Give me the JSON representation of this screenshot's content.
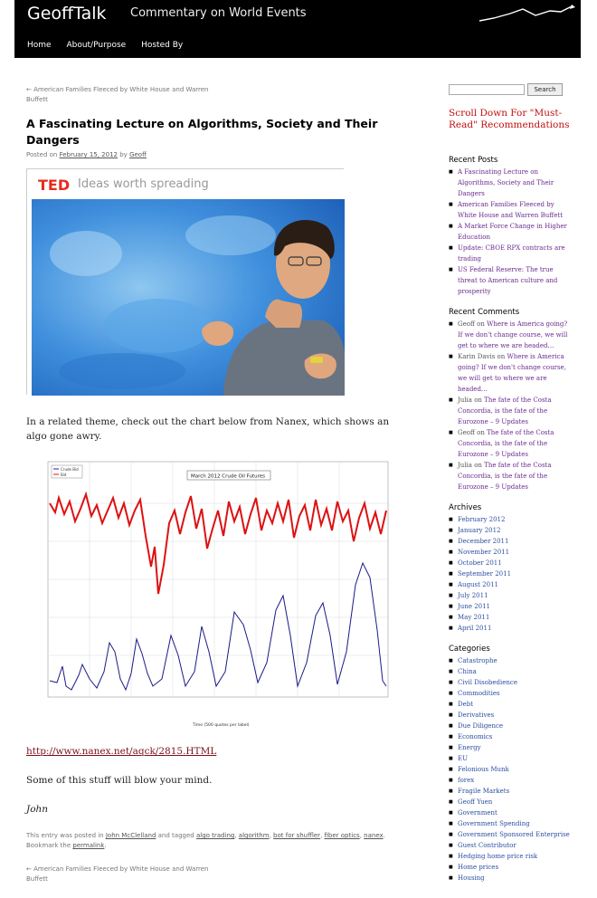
{
  "site": {
    "title": "GeoffTalk",
    "description": "Commentary on World Events"
  },
  "nav": {
    "items": [
      "Home",
      "About/Purpose",
      "Hosted By"
    ]
  },
  "post_nav": {
    "previous": "← American Families Fleeced by White House and Warren Buffett"
  },
  "post": {
    "title": "A Fascinating Lecture on Algorithms, Society and Their Dangers",
    "meta_prefix": "Posted on",
    "date": "February 15, 2012",
    "meta_by": "by",
    "author": "Geoff",
    "ted": {
      "logo": "TED",
      "tagline": "Ideas worth spreading"
    },
    "paragraph1": "In a related theme, check out the chart below from Nanex, which shows an algo gone awry.",
    "chart_title": "March 2012 Crude Oil Futures",
    "chart_legend": [
      "Crude Bid",
      "Bid"
    ],
    "chart_xlabel": "Time (500 quotes per label)",
    "link": "http://www.nanex.net/aqck/2815.HTML",
    "paragraph2": "Some of this stuff will blow your mind.",
    "signature": "John",
    "utility_prefix": "This entry was posted in",
    "utility_category": "John McClelland",
    "utility_tagged": "and tagged",
    "tags": [
      "algo trading",
      "algorithm",
      "bot for shuffler",
      "fiber optics",
      "nanex"
    ],
    "utility_bookmark": ". Bookmark the",
    "permalink": "permalink"
  },
  "sidebar": {
    "search_button": "Search",
    "scroll_down": "Scroll Down For \"Must-Read\" Recommendations",
    "recent_posts_title": "Recent Posts",
    "recent_posts": [
      "A Fascinating Lecture on Algorithms, Society and Their Dangers",
      "American Families Fleeced by White House and Warren Buffett",
      "A Market Force Change in Higher Education",
      "Update: CBOE RPX contracts are trading",
      "US Federal Reserve: The true threat to American culture and prosperity"
    ],
    "recent_comments_title": "Recent Comments",
    "recent_comments": [
      {
        "author": "Geoff",
        "on": "on",
        "post": "Where is America going? If we don't change course, we will get to where we are headed…"
      },
      {
        "author": "Karin Davis",
        "on": "on",
        "post": "Where is America going? If we don't change course, we will get to where we are headed…"
      },
      {
        "author": "Julia",
        "on": "on",
        "post": "The fate of the Costa Concordia, is the fate of the Eurozone – 9 Updates"
      },
      {
        "author": "Geoff",
        "on": "on",
        "post": "The fate of the Costa Concordia, is the fate of the Eurozone – 9 Updates"
      },
      {
        "author": "Julia",
        "on": "on",
        "post": "The fate of the Costa Concordia, is the fate of the Eurozone – 9 Updates"
      }
    ],
    "archives_title": "Archives",
    "archives": [
      "February 2012",
      "January 2012",
      "December 2011",
      "November 2011",
      "October 2011",
      "September 2011",
      "August 2011",
      "July 2011",
      "June 2011",
      "May 2011",
      "April 2011"
    ],
    "categories_title": "Categories",
    "categories": [
      "Catastrophe",
      "China",
      "Civil Disobedience",
      "Commodities",
      "Debt",
      "Derivatives",
      "Due Diligence",
      "Economics",
      "Energy",
      "EU",
      "Felonious Munk",
      "forex",
      "Fragile Markets",
      "Geoff Yuen",
      "Government",
      "Government Spending",
      "Government Sponsored Enterprise",
      "Guest Contributor",
      "Hedging home price risk",
      "Home prices",
      "Housing"
    ]
  }
}
